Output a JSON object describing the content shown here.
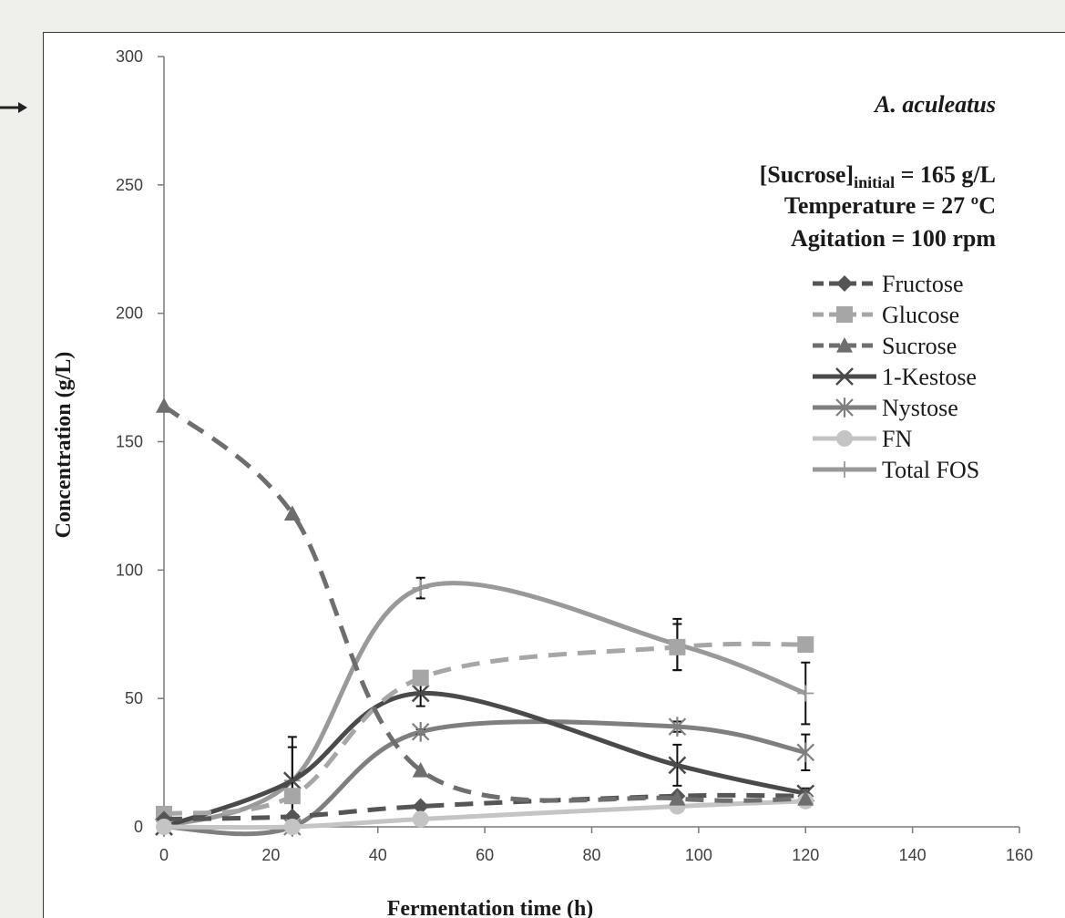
{
  "chart_data": {
    "type": "line",
    "title": "",
    "species_label": "A. aculeatus",
    "conditions": {
      "sucrose_prefix": "[Sucrose]",
      "sucrose_sub": "initial",
      "sucrose_value": " = 165 g/L",
      "temperature": "Temperature = 27 ºC",
      "agitation": "Agitation = 100 rpm"
    },
    "xlabel": "Fermentation time (h)",
    "ylabel": "Concentration (g/L)",
    "xlim": [
      0,
      160
    ],
    "ylim": [
      0,
      300
    ],
    "xticks": [
      "0",
      "20",
      "40",
      "60",
      "80",
      "100",
      "120",
      "140",
      "160"
    ],
    "yticks": [
      "0",
      "50",
      "100",
      "150",
      "200",
      "250",
      "300"
    ],
    "grid": false,
    "legend_position": "right",
    "x": [
      0,
      24,
      48,
      96,
      120
    ],
    "series": [
      {
        "name": "Fructose",
        "values": [
          3,
          4,
          8,
          12,
          12
        ],
        "errors": [
          0,
          0,
          0,
          0,
          0
        ],
        "color": "#555555",
        "dash": "dashed",
        "marker": "diamond"
      },
      {
        "name": "Glucose",
        "values": [
          5,
          12,
          58,
          70,
          71
        ],
        "errors": [
          0,
          0,
          0,
          9,
          0
        ],
        "color": "#a6a6a6",
        "dash": "dashed",
        "marker": "square"
      },
      {
        "name": "Sucrose",
        "values": [
          164,
          122,
          22,
          11,
          11
        ],
        "errors": [
          0,
          0,
          0,
          0,
          0
        ],
        "color": "#6e6e6e",
        "dash": "dashed",
        "marker": "triangle"
      },
      {
        "name": "1-Kestose",
        "values": [
          0,
          18,
          52,
          24,
          13
        ],
        "errors": [
          0,
          13,
          5,
          8,
          2
        ],
        "color": "#4a4a4a",
        "dash": "solid",
        "marker": "x"
      },
      {
        "name": "Nystose",
        "values": [
          0,
          0,
          37,
          39,
          29
        ],
        "errors": [
          0,
          0,
          1,
          2,
          7
        ],
        "color": "#7f7f7f",
        "dash": "solid",
        "marker": "star"
      },
      {
        "name": "FN",
        "values": [
          0,
          0,
          3,
          8,
          10
        ],
        "errors": [
          0,
          0,
          0,
          0,
          0
        ],
        "color": "#c4c4c4",
        "dash": "solid",
        "marker": "circle"
      },
      {
        "name": "Total FOS",
        "values": [
          0,
          18,
          93,
          71,
          52
        ],
        "errors": [
          0,
          17,
          4,
          10,
          12
        ],
        "color": "#999999",
        "dash": "solid",
        "marker": "plus"
      }
    ]
  }
}
